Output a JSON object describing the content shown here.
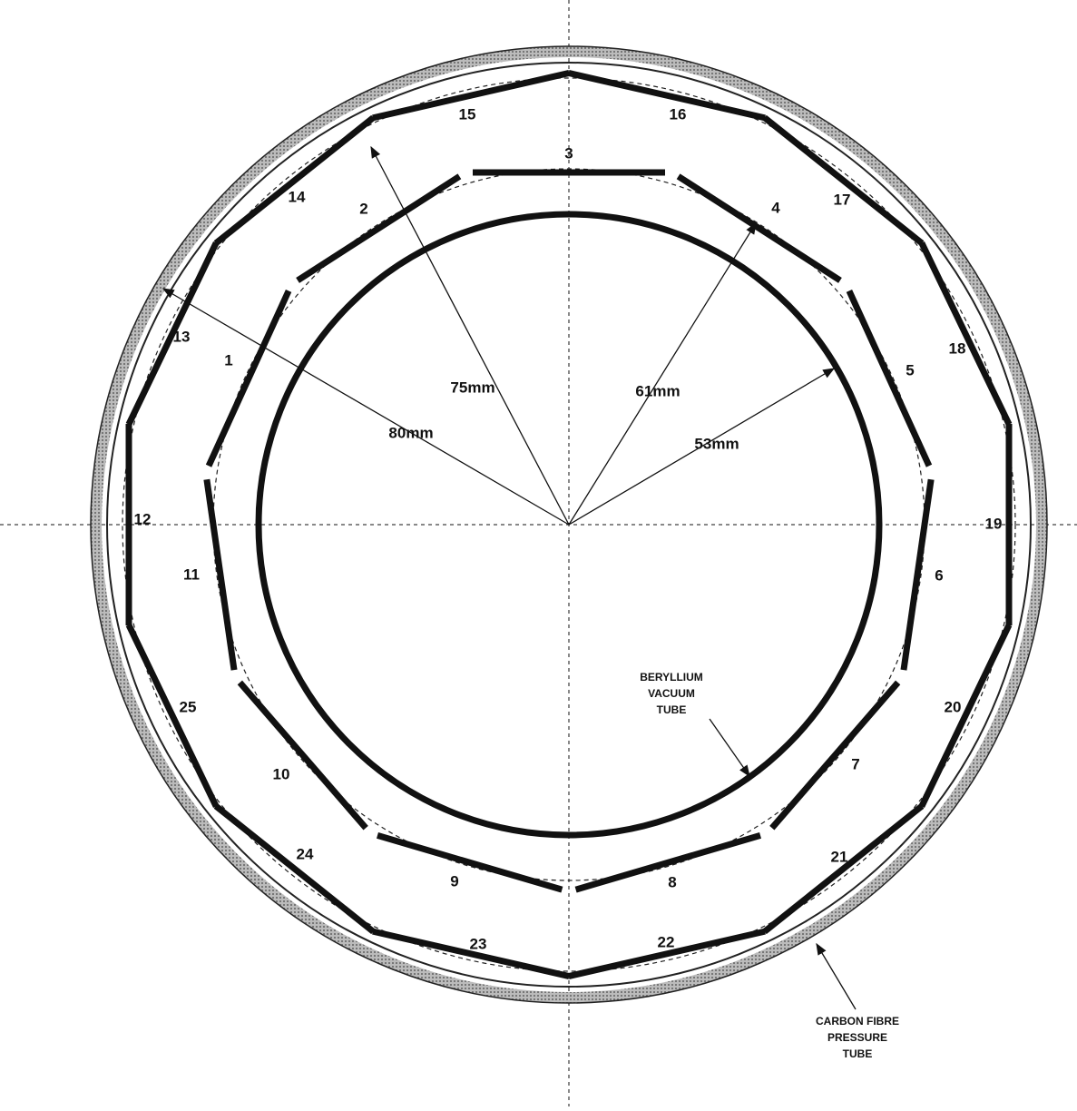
{
  "segments": {
    "inner": [
      "1",
      "2",
      "3",
      "4",
      "5",
      "6",
      "7",
      "8",
      "9",
      "10",
      "11"
    ],
    "outer": [
      "12",
      "13",
      "14",
      "15",
      "16",
      "17",
      "18",
      "19",
      "20",
      "21",
      "22",
      "23",
      "24",
      "25"
    ]
  },
  "radii": [
    "75mm",
    "61mm",
    "80mm",
    "53mm"
  ],
  "callouts": {
    "beryllium": [
      "BERYLLIUM",
      "VACUUM",
      "TUBE"
    ],
    "carbon": [
      "CARBON FIBRE",
      "PRESSURE",
      "TUBE"
    ]
  }
}
